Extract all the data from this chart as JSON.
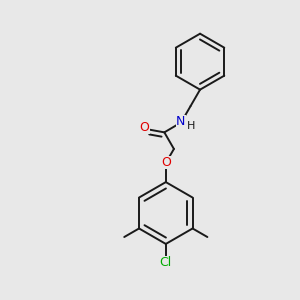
{
  "bg_color": "#e8e8e8",
  "bond_color": "#1a1a1a",
  "atom_colors": {
    "O": "#e00000",
    "N": "#0000cc",
    "Cl": "#00aa00",
    "H": "#1a1a1a"
  },
  "bond_width": 1.4,
  "fig_size": [
    3.0,
    3.0
  ],
  "dpi": 100
}
